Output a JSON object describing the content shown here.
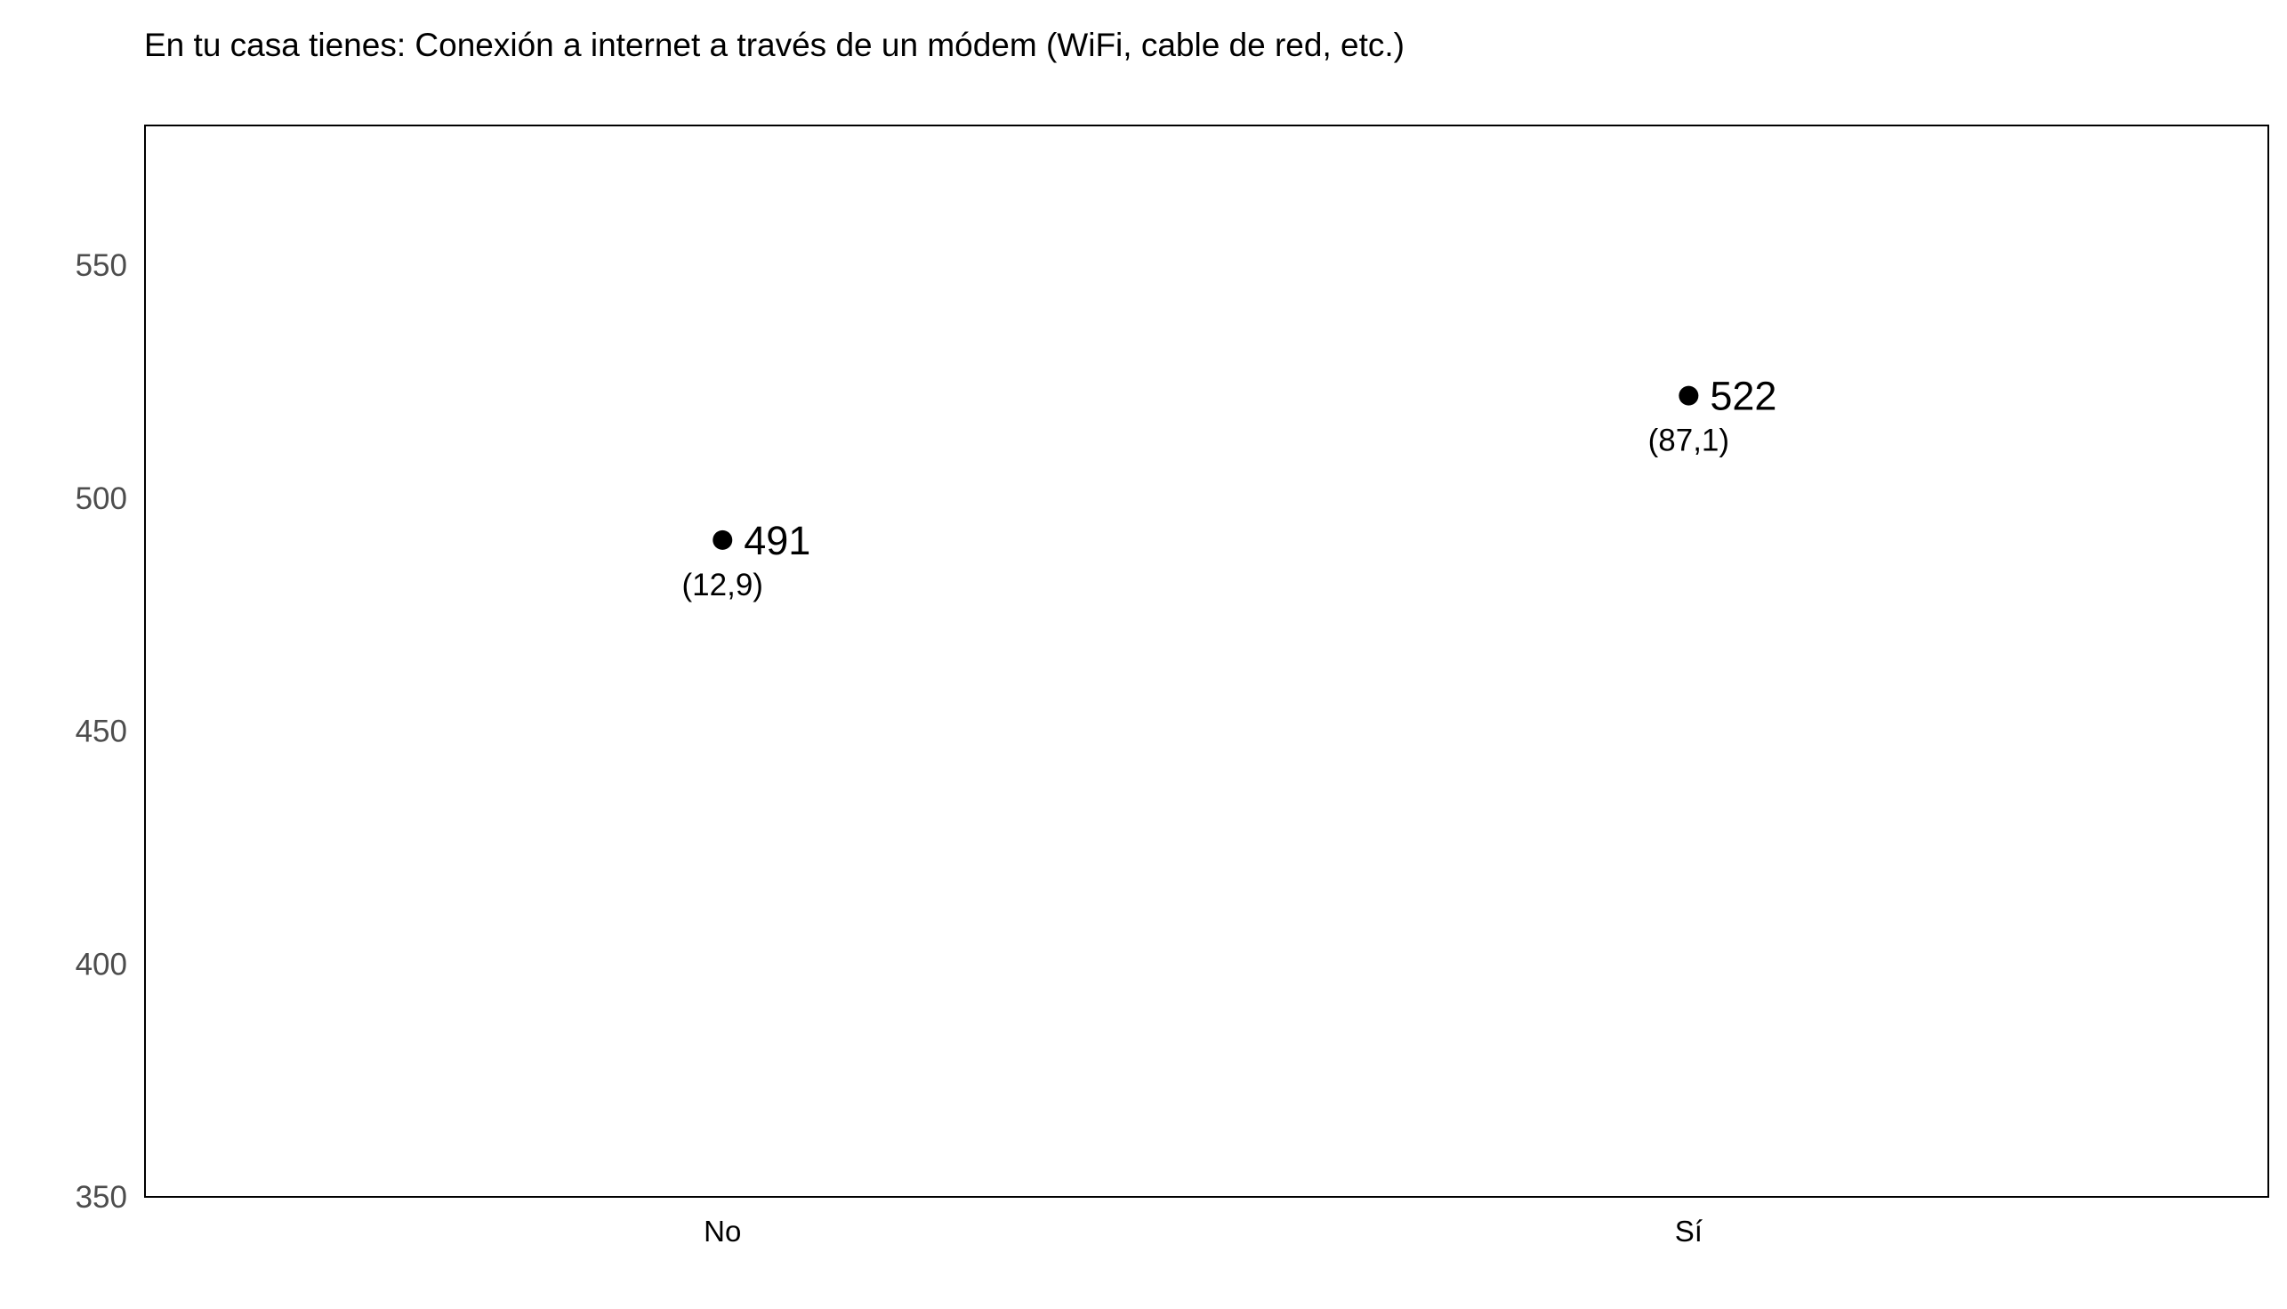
{
  "chart_data": {
    "type": "scatter",
    "title": "En tu casa tienes: Conexión a internet a través de un módem (WiFi, cable de red, etc.)",
    "xlabel": "",
    "ylabel": "",
    "categories": [
      "No",
      "Sí"
    ],
    "values": [
      491,
      522
    ],
    "value_labels": [
      "491",
      "522"
    ],
    "secondary_labels": [
      "(12,9)",
      "(87,1)"
    ],
    "ylim": [
      350,
      580
    ],
    "yticks": [
      350,
      400,
      450,
      500,
      550
    ],
    "grid": false,
    "legend": "none",
    "colors": {
      "point": "#000000",
      "frame": "#000000",
      "tick_text": "#4d4d4d"
    }
  }
}
